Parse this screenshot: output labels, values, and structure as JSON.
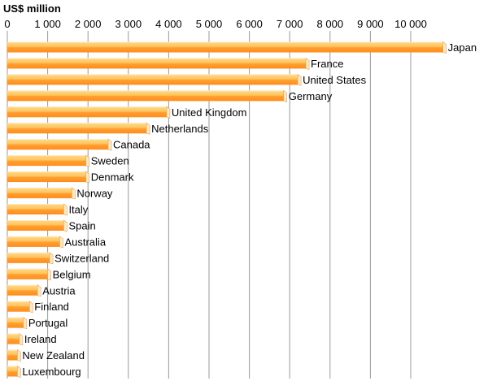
{
  "chart_data": {
    "type": "bar",
    "orientation": "horizontal",
    "ylabel": "US$ million",
    "xlim": [
      0,
      11000
    ],
    "x_ticks": [
      0,
      1000,
      2000,
      3000,
      4000,
      5000,
      6000,
      7000,
      8000,
      9000,
      10000
    ],
    "x_tick_labels": [
      "0",
      "1 000",
      "2 000",
      "3 000",
      "4 000",
      "5 000",
      "6 000",
      "7 000",
      "8 000",
      "9 000",
      "10 000"
    ],
    "grid": true,
    "categories": [
      "Japan",
      "France",
      "United States",
      "Germany",
      "United Kingdom",
      "Netherlands",
      "Canada",
      "Sweden",
      "Denmark",
      "Norway",
      "Italy",
      "Spain",
      "Australia",
      "Switzerland",
      "Belgium",
      "Austria",
      "Finland",
      "Portugal",
      "Ireland",
      "New Zealand",
      "Luxembourg"
    ],
    "values": [
      10800,
      7400,
      7200,
      6850,
      3950,
      3450,
      2500,
      1950,
      1950,
      1600,
      1400,
      1400,
      1300,
      1050,
      1000,
      750,
      550,
      400,
      300,
      250,
      250
    ],
    "colors": {
      "bar_top": "#ffcc66",
      "bar_mid": "#ffb347",
      "bar_bottom": "#ff8c1a",
      "bar_end": "#ffe9bf"
    }
  }
}
